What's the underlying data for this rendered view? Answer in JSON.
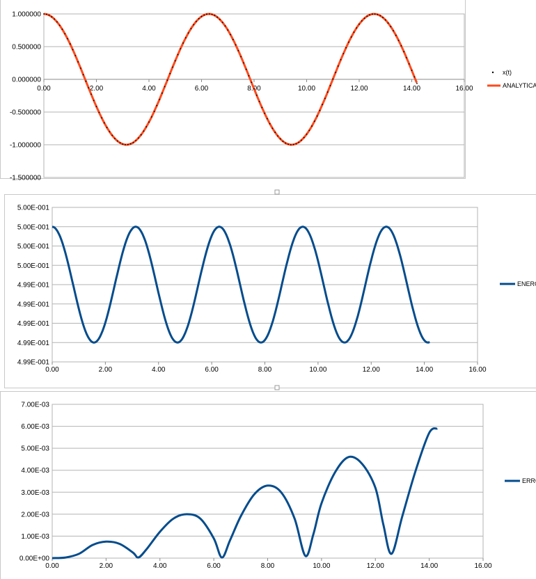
{
  "chart_data": [
    {
      "type": "line",
      "title": "",
      "xlabel": "",
      "ylabel": "",
      "xlim": [
        0,
        16
      ],
      "ylim": [
        -1.5,
        1.0
      ],
      "x_ticks": [
        "0.00",
        "2.00",
        "4.00",
        "6.00",
        "8.00",
        "10.00",
        "12.00",
        "14.00",
        "16.00"
      ],
      "y_ticks": [
        "1.000000",
        "0.500000",
        "0.000000",
        "-0.500000",
        "-1.000000",
        "-1.500000"
      ],
      "grid": "horizontal",
      "legend": "right",
      "x": [
        0.0,
        0.5,
        1.0,
        1.5,
        2.0,
        2.5,
        3.0,
        3.5,
        4.0,
        4.5,
        5.0,
        5.5,
        6.0,
        6.5,
        7.0,
        7.5,
        8.0,
        8.5,
        9.0,
        9.5,
        10.0,
        10.5,
        11.0,
        11.5,
        12.0,
        12.5,
        13.0,
        13.5,
        14.0,
        14.2
      ],
      "series": [
        {
          "name": "x(t)",
          "values": [
            1.0,
            0.878,
            0.54,
            0.071,
            -0.416,
            -0.801,
            -0.99,
            -0.936,
            -0.654,
            -0.211,
            0.284,
            0.709,
            0.96,
            0.977,
            0.754,
            0.347,
            -0.146,
            -0.602,
            -0.911,
            -0.997,
            -0.839,
            -0.476,
            0.004,
            0.48,
            0.844,
            0.998,
            0.907,
            0.595,
            0.137,
            -0.05
          ],
          "color": "#000000",
          "style": "dot"
        },
        {
          "name": "ANALYTICAL",
          "values": [
            1.0,
            0.878,
            0.54,
            0.071,
            -0.416,
            -0.801,
            -0.99,
            -0.936,
            -0.654,
            -0.211,
            0.284,
            0.709,
            0.96,
            0.977,
            0.754,
            0.347,
            -0.146,
            -0.602,
            -0.911,
            -0.997,
            -0.839,
            -0.476,
            0.004,
            0.48,
            0.844,
            0.998,
            0.907,
            0.595,
            0.137,
            -0.05
          ],
          "color": "#FF4A1C",
          "style": "line"
        }
      ]
    },
    {
      "type": "line",
      "title": "",
      "xlabel": "",
      "ylabel": "",
      "xlim": [
        0,
        16
      ],
      "ylim": [
        0,
        8
      ],
      "x_ticks": [
        "0.00",
        "2.00",
        "4.00",
        "6.00",
        "8.00",
        "10.00",
        "12.00",
        "14.00",
        "16.00"
      ],
      "y_ticks": [
        "5.00E-001",
        "5.00E-001",
        "5.00E-001",
        "5.00E-001",
        "4.99E-001",
        "4.99E-001",
        "4.99E-001",
        "4.99E-001",
        "4.99E-001"
      ],
      "grid": "horizontal",
      "legend": "right",
      "series": [
        {
          "name": "ENERG",
          "color": "#044C8C",
          "period": 3.1416,
          "max_level": 7,
          "min_level": 1,
          "t_end": 14.2
        }
      ]
    },
    {
      "type": "line",
      "title": "",
      "xlabel": "",
      "ylabel": "",
      "xlim": [
        0,
        16
      ],
      "ylim": [
        0,
        0.007
      ],
      "x_ticks": [
        "0.00",
        "2.00",
        "4.00",
        "6.00",
        "8.00",
        "10.00",
        "12.00",
        "14.00",
        "16.00"
      ],
      "y_ticks": [
        "7.00E-03",
        "6.00E-03",
        "5.00E-03",
        "4.00E-03",
        "3.00E-03",
        "2.00E-03",
        "1.00E-03",
        "0.00E+00"
      ],
      "grid": "horizontal",
      "legend": "right",
      "series": [
        {
          "name": "ERRO",
          "color": "#044C8C",
          "points": [
            [
              0.0,
              0.0
            ],
            [
              0.5,
              3e-05
            ],
            [
              1.0,
              0.0002
            ],
            [
              1.5,
              0.0006
            ],
            [
              2.0,
              0.00075
            ],
            [
              2.5,
              0.00065
            ],
            [
              3.0,
              0.00025
            ],
            [
              3.2,
              3e-05
            ],
            [
              3.5,
              0.0004
            ],
            [
              4.0,
              0.0012
            ],
            [
              4.5,
              0.0018
            ],
            [
              5.0,
              0.002
            ],
            [
              5.5,
              0.0018
            ],
            [
              6.0,
              0.0009
            ],
            [
              6.3,
              3e-05
            ],
            [
              6.6,
              0.0008
            ],
            [
              7.0,
              0.0019
            ],
            [
              7.5,
              0.0029
            ],
            [
              8.0,
              0.0033
            ],
            [
              8.5,
              0.003
            ],
            [
              9.0,
              0.0018
            ],
            [
              9.4,
              0.0001
            ],
            [
              9.7,
              0.0011
            ],
            [
              10.0,
              0.0025
            ],
            [
              10.5,
              0.0039
            ],
            [
              11.0,
              0.0046
            ],
            [
              11.5,
              0.0043
            ],
            [
              12.0,
              0.0032
            ],
            [
              12.3,
              0.0015
            ],
            [
              12.6,
              0.0002
            ],
            [
              13.0,
              0.0019
            ],
            [
              13.5,
              0.004
            ],
            [
              14.0,
              0.0057
            ],
            [
              14.3,
              0.0059
            ]
          ]
        }
      ]
    }
  ]
}
